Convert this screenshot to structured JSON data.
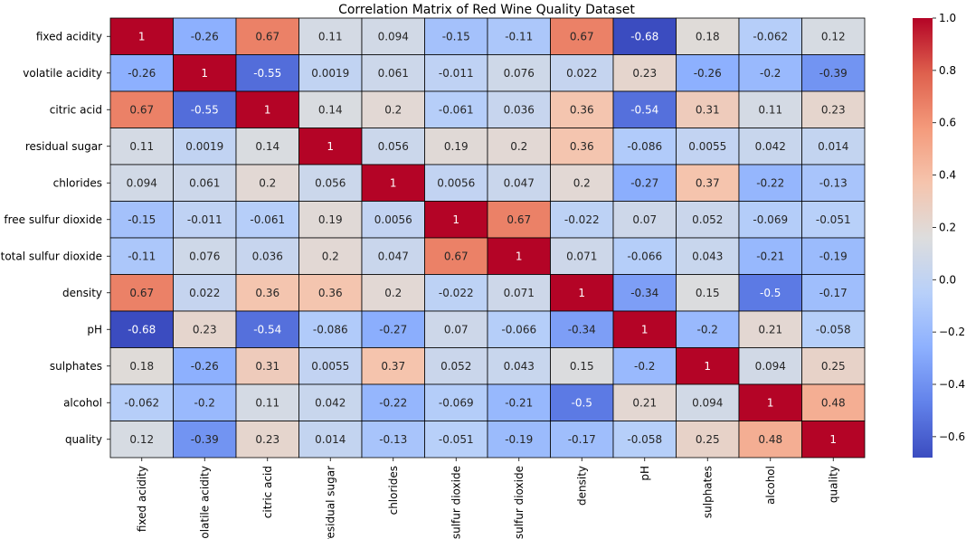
{
  "chart_data": {
    "type": "heatmap",
    "title": "Correlation Matrix of Red Wine Quality Dataset",
    "row_labels": [
      "fixed acidity",
      "volatile acidity",
      "citric acid",
      "residual sugar",
      "chlorides",
      "free sulfur dioxide",
      "total sulfur dioxide",
      "density",
      "pH",
      "sulphates",
      "alcohol",
      "quality"
    ],
    "col_labels": [
      "fixed acidity",
      "volatile acidity",
      "citric acid",
      "residual sugar",
      "chlorides",
      "sulfur dioxide",
      "sulfur dioxide",
      "density",
      "pH",
      "sulphates",
      "alcohol",
      "quality"
    ],
    "values": [
      [
        1,
        -0.26,
        0.67,
        0.11,
        0.094,
        -0.15,
        -0.11,
        0.67,
        -0.68,
        0.18,
        -0.062,
        0.12
      ],
      [
        -0.26,
        1,
        -0.55,
        0.0019,
        0.061,
        -0.011,
        0.076,
        0.022,
        0.23,
        -0.26,
        -0.2,
        -0.39
      ],
      [
        0.67,
        -0.55,
        1,
        0.14,
        0.2,
        -0.061,
        0.036,
        0.36,
        -0.54,
        0.31,
        0.11,
        0.23
      ],
      [
        0.11,
        0.0019,
        0.14,
        1,
        0.056,
        0.19,
        0.2,
        0.36,
        -0.086,
        0.0055,
        0.042,
        0.014
      ],
      [
        0.094,
        0.061,
        0.2,
        0.056,
        1,
        0.0056,
        0.047,
        0.2,
        -0.27,
        0.37,
        -0.22,
        -0.13
      ],
      [
        -0.15,
        -0.011,
        -0.061,
        0.19,
        0.0056,
        1,
        0.67,
        -0.022,
        0.07,
        0.052,
        -0.069,
        -0.051
      ],
      [
        -0.11,
        0.076,
        0.036,
        0.2,
        0.047,
        0.67,
        1,
        0.071,
        -0.066,
        0.043,
        -0.21,
        -0.19
      ],
      [
        0.67,
        0.022,
        0.36,
        0.36,
        0.2,
        -0.022,
        0.071,
        1,
        -0.34,
        0.15,
        -0.5,
        -0.17
      ],
      [
        -0.68,
        0.23,
        -0.54,
        -0.086,
        -0.27,
        0.07,
        -0.066,
        -0.34,
        1,
        -0.2,
        0.21,
        -0.058
      ],
      [
        0.18,
        -0.26,
        0.31,
        0.0055,
        0.37,
        0.052,
        0.043,
        0.15,
        -0.2,
        1,
        0.094,
        0.25
      ],
      [
        -0.062,
        -0.2,
        0.11,
        0.042,
        -0.22,
        -0.069,
        -0.21,
        -0.5,
        0.21,
        0.094,
        1,
        0.48
      ],
      [
        0.12,
        -0.39,
        0.23,
        0.014,
        -0.13,
        -0.051,
        -0.19,
        -0.17,
        -0.058,
        0.25,
        0.48,
        1
      ]
    ],
    "colormap": "coolwarm",
    "vmin": -0.68,
    "vmax": 1.0,
    "colorbar_ticks": [
      1.0,
      0.8,
      0.6,
      0.4,
      0.2,
      0.0,
      -0.2,
      -0.4,
      -0.6
    ],
    "colorbar_tick_labels": [
      "1.0",
      "0.8",
      "0.6",
      "0.4",
      "0.2",
      "0.0",
      "−0.2",
      "−0.4",
      "−0.6"
    ],
    "annotated": true,
    "cell_borders": true
  }
}
